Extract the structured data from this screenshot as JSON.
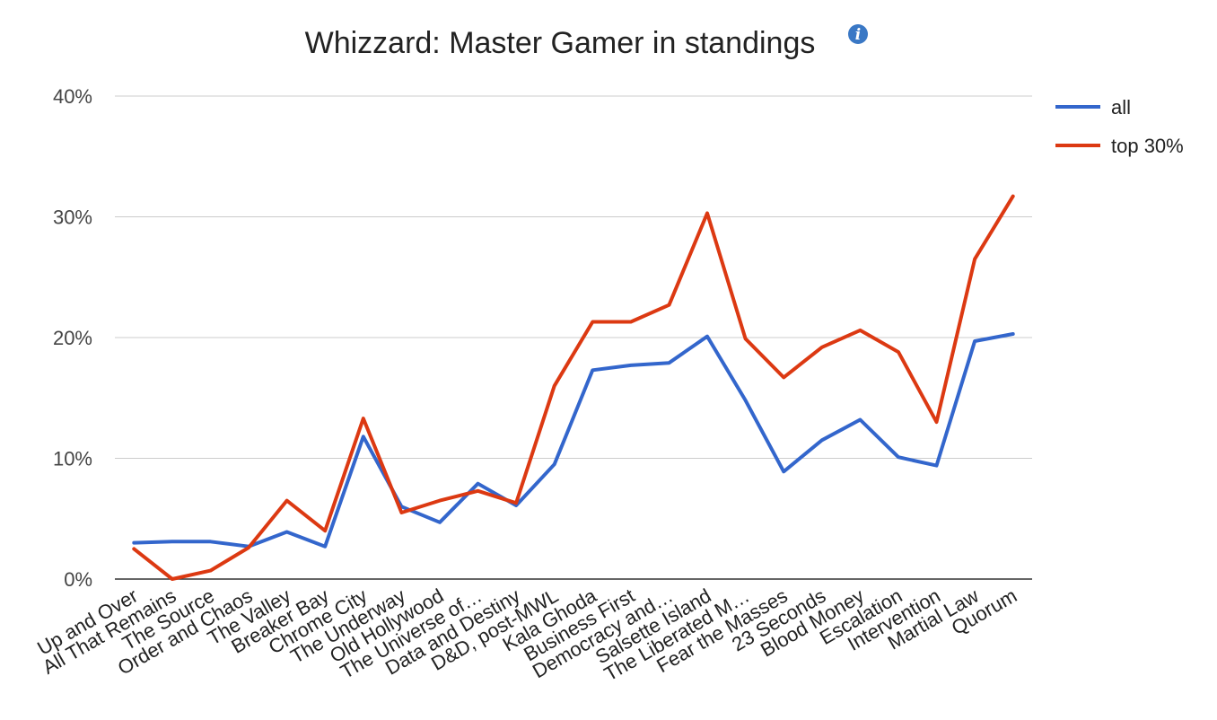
{
  "chart_data": {
    "type": "line",
    "title": "Whizzard: Master Gamer in standings",
    "info_icon": "info-icon",
    "ylim": [
      0,
      40
    ],
    "yticks": [
      0,
      10,
      20,
      30,
      40
    ],
    "ytick_labels": [
      "0%",
      "10%",
      "20%",
      "30%",
      "40%"
    ],
    "grid": true,
    "legend_position": "right",
    "categories": [
      "Up and Over",
      "All That Remains",
      "The Source",
      "Order and Chaos",
      "The Valley",
      "Breaker Bay",
      "Chrome City",
      "The Underway",
      "Old Hollywood",
      "The Universe of…",
      "Data and Destiny",
      "D&D, post-MWL",
      "Kala Ghoda",
      "Business First",
      "Democracy and…",
      "Salsette Island",
      "The Liberated M…",
      "Fear the Masses",
      "23 Seconds",
      "Blood Money",
      "Escalation",
      "Intervention",
      "Martial Law",
      "Quorum"
    ],
    "series": [
      {
        "name": "all",
        "color": "#3366cc",
        "values": [
          3.0,
          3.1,
          3.1,
          2.7,
          3.9,
          2.7,
          11.8,
          6.0,
          4.7,
          7.9,
          6.1,
          9.5,
          17.3,
          17.7,
          17.9,
          20.1,
          14.8,
          8.9,
          11.5,
          13.2,
          10.1,
          9.4,
          19.7,
          20.3
        ]
      },
      {
        "name": "top 30%",
        "color": "#dc3912",
        "values": [
          2.5,
          0.0,
          0.7,
          2.6,
          6.5,
          4.0,
          13.3,
          5.5,
          6.5,
          7.3,
          6.3,
          16.0,
          21.3,
          21.3,
          22.7,
          30.3,
          19.9,
          16.7,
          19.2,
          20.6,
          18.8,
          13.0,
          26.5,
          31.7
        ]
      }
    ]
  }
}
